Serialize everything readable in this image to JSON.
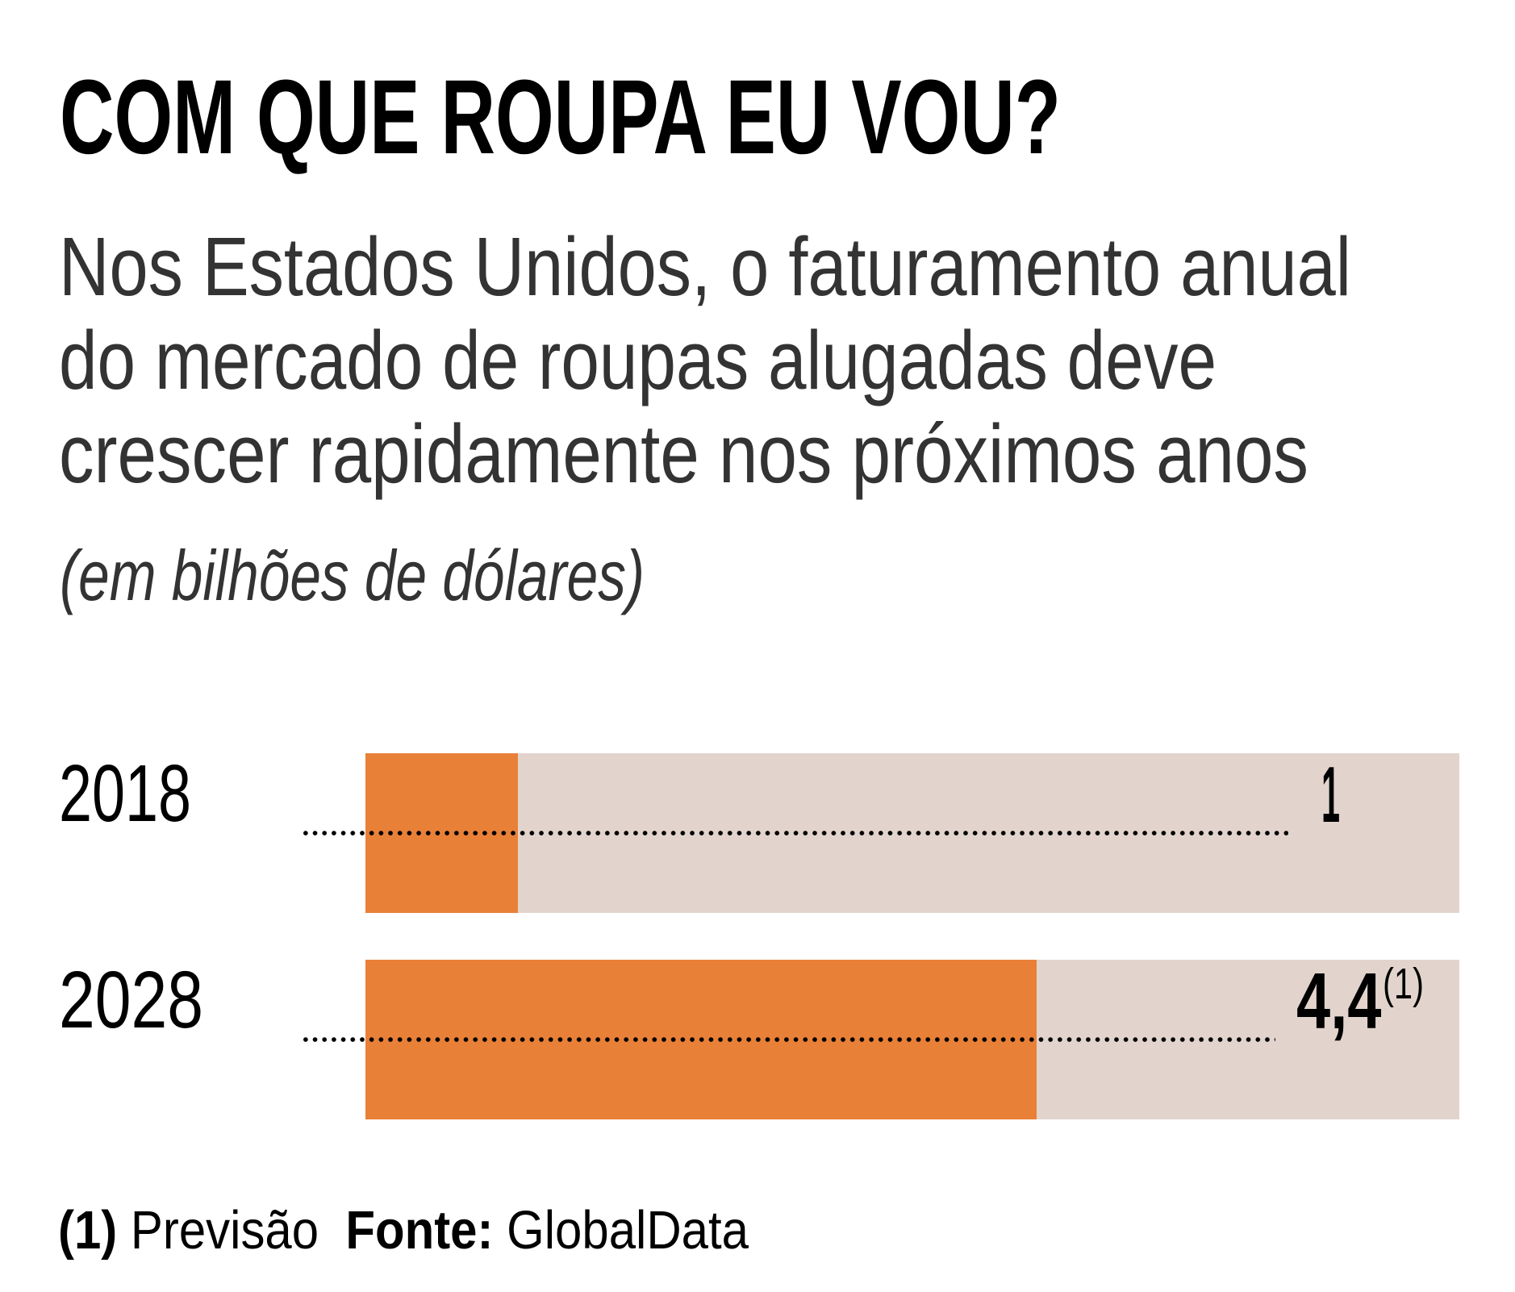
{
  "title": "COM QUE ROUPA EU VOU?",
  "subtitle_lines": [
    "Nos Estados Unidos, o faturamento anual",
    "do mercado de roupas alugadas deve",
    "crescer rapidamente nos próximos anos"
  ],
  "unit_note": "(em bilhões de dólares)",
  "colors": {
    "bar_fill": "#E98037",
    "bar_track": "#E2D4CD",
    "text": "#000000",
    "subtitle_text": "#333333"
  },
  "chart_data": {
    "type": "bar",
    "orientation": "horizontal",
    "title": "COM QUE ROUPA EU VOU?",
    "subtitle": "Nos Estados Unidos, o faturamento anual do mercado de roupas alugadas deve crescer rapidamente nos próximos anos",
    "ylabel": "(em bilhões de dólares)",
    "xlabel": "",
    "categories": [
      "2018",
      "2028"
    ],
    "values": [
      1,
      4.4
    ],
    "value_labels": [
      "1",
      "4,4"
    ],
    "value_footnotes": [
      "",
      "(1)"
    ],
    "xlim": [
      0,
      7.17
    ],
    "grid": false,
    "legend": "none"
  },
  "footnote": {
    "marker": "(1)",
    "text": "Previsão",
    "source_label": "Fonte:",
    "source": "GlobalData"
  }
}
